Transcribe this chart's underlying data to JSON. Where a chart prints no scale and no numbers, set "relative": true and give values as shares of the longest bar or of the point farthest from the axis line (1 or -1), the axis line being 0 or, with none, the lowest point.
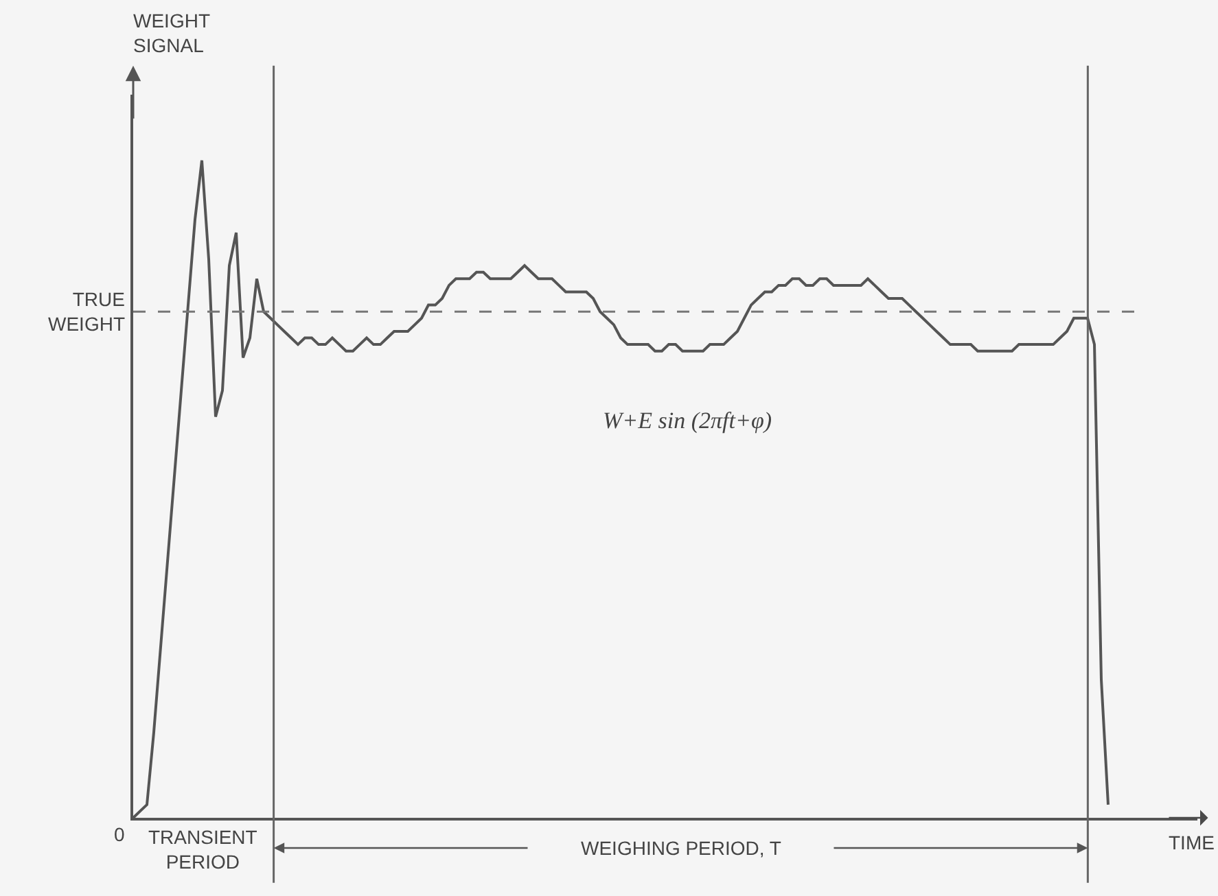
{
  "chart_data": {
    "type": "line",
    "relative": true,
    "xlabel": "TIME",
    "grid": false,
    "marker": "none",
    "line_style": "solid",
    "categories": [
      null,
      null,
      null,
      null,
      null,
      null,
      null,
      null,
      null,
      null,
      null,
      null,
      null,
      null,
      null,
      null,
      null,
      null,
      null,
      null,
      null,
      null,
      null,
      null,
      null,
      null,
      null,
      null,
      null,
      null,
      null,
      null,
      null,
      null,
      null,
      null,
      null,
      null,
      null,
      null,
      null,
      null,
      null,
      null,
      null,
      null,
      null,
      null,
      null,
      null,
      null,
      null,
      null,
      null,
      null,
      null,
      null,
      null,
      null,
      null,
      null,
      null,
      null,
      null,
      null,
      null,
      null,
      null,
      null,
      null,
      null,
      null,
      null,
      null,
      null,
      null,
      null,
      null,
      null,
      null,
      null,
      null,
      null,
      null,
      null,
      null,
      null,
      null,
      null,
      null,
      null,
      null,
      null,
      null,
      null,
      null,
      null,
      null,
      null,
      null,
      null,
      null,
      null,
      null,
      null,
      null,
      null,
      null,
      null,
      null,
      null,
      null,
      null,
      null,
      null,
      null,
      null,
      null,
      null,
      null,
      null,
      null,
      null,
      null,
      null,
      null,
      null,
      null,
      null,
      null,
      null,
      null,
      null,
      null,
      null,
      null,
      null,
      null,
      null,
      null,
      null,
      null,
      null,
      null,
      null,
      null,
      null,
      null,
      null,
      null,
      null,
      null,
      null,
      null,
      null,
      null
    ],
    "series": [
      {
        "color": "#555555",
        "values": [
          0,
          0.01,
          0.02,
          0.13,
          0.26,
          0.39,
          0.52,
          0.65,
          0.78,
          0.91,
          1.0,
          0.85,
          0.61,
          0.65,
          0.84,
          0.89,
          0.7,
          0.73,
          0.82,
          0.77,
          0.76,
          0.75,
          0.74,
          0.73,
          0.72,
          0.73,
          0.73,
          0.72,
          0.72,
          0.73,
          0.72,
          0.71,
          0.71,
          0.72,
          0.73,
          0.72,
          0.72,
          0.73,
          0.74,
          0.74,
          0.74,
          0.75,
          0.76,
          0.78,
          0.78,
          0.79,
          0.81,
          0.82,
          0.82,
          0.82,
          0.83,
          0.83,
          0.82,
          0.82,
          0.82,
          0.82,
          0.83,
          0.84,
          0.83,
          0.82,
          0.82,
          0.82,
          0.81,
          0.8,
          0.8,
          0.8,
          0.8,
          0.79,
          0.77,
          0.76,
          0.75,
          0.73,
          0.72,
          0.72,
          0.72,
          0.72,
          0.71,
          0.71,
          0.72,
          0.72,
          0.71,
          0.71,
          0.71,
          0.71,
          0.72,
          0.72,
          0.72,
          0.73,
          0.74,
          0.76,
          0.78,
          0.79,
          0.8,
          0.8,
          0.81,
          0.81,
          0.82,
          0.82,
          0.81,
          0.81,
          0.82,
          0.82,
          0.81,
          0.81,
          0.81,
          0.81,
          0.81,
          0.82,
          0.81,
          0.8,
          0.79,
          0.79,
          0.79,
          0.78,
          0.77,
          0.76,
          0.75,
          0.74,
          0.73,
          0.72,
          0.72,
          0.72,
          0.72,
          0.71,
          0.71,
          0.71,
          0.71,
          0.71,
          0.71,
          0.72,
          0.72,
          0.72,
          0.72,
          0.72,
          0.72,
          0.73,
          0.74,
          0.76,
          0.76,
          0.76,
          0.72,
          0.21,
          0.02,
          null,
          null,
          null,
          null,
          null,
          null,
          null,
          null,
          null,
          null,
          null,
          null,
          null
        ]
      }
    ],
    "ref_lines": [
      {
        "axis": "y",
        "value": 0.77,
        "label": "TRUE WEIGHT",
        "line_style": "dashed",
        "color": "#777777"
      }
    ],
    "annotations": [
      "WEIGHT SIGNAL",
      "0",
      "TRANSIENT PERIOD",
      "WEIGHING PERIOD, T",
      "W+E sin (2πft+φ)"
    ]
  }
}
